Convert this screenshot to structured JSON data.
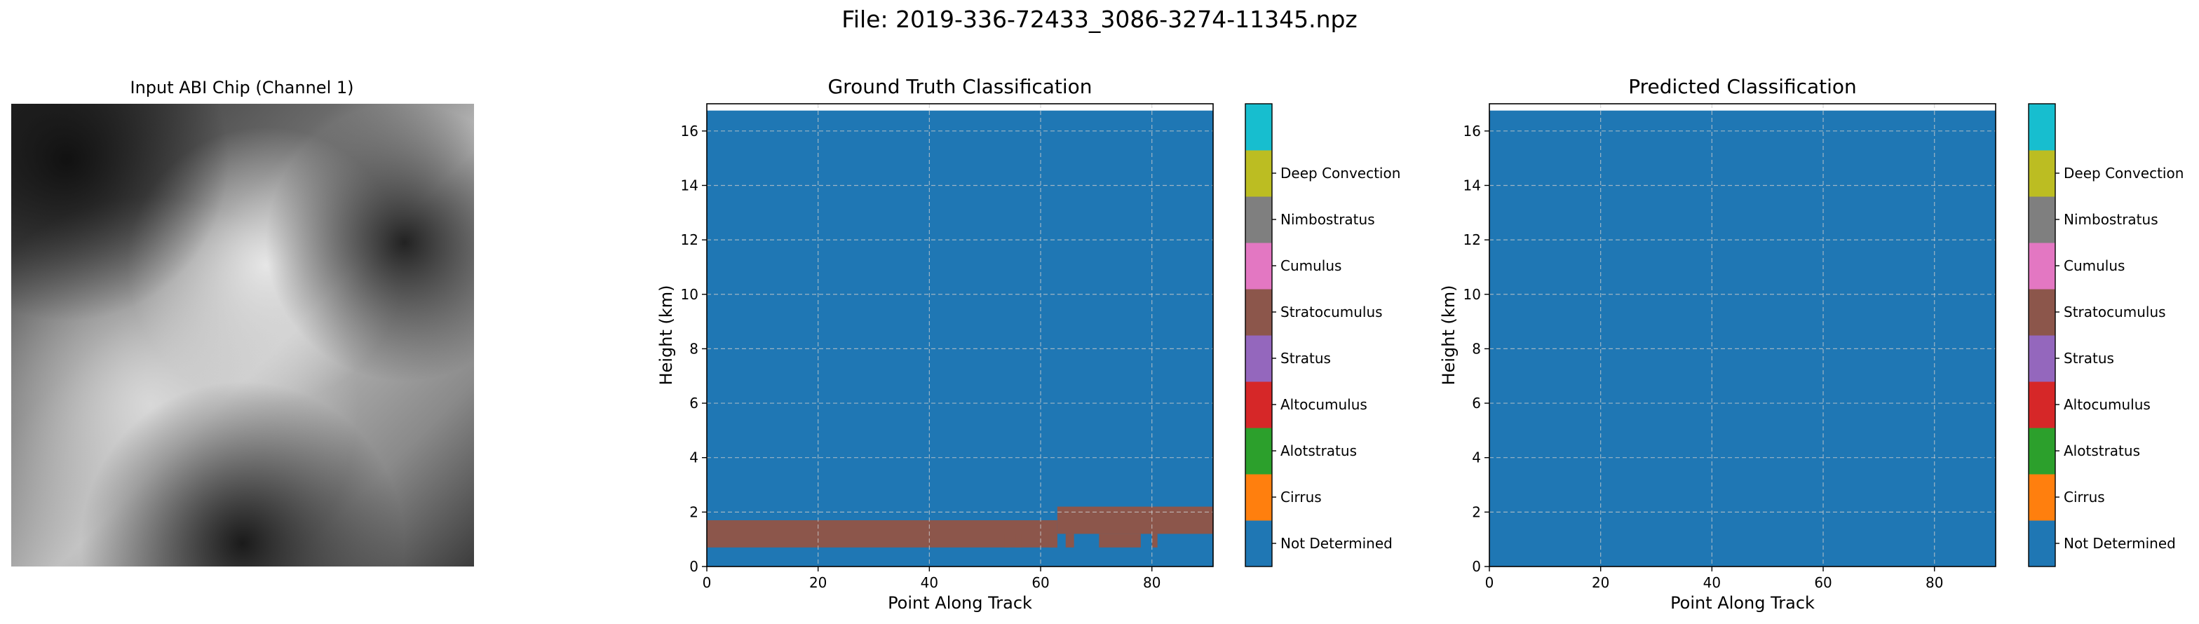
{
  "suptitle": "File: 2019-336-72433_3086-3274-11345.npz",
  "panels": {
    "input": {
      "title": "Input ABI Chip (Channel 1)"
    },
    "truth": {
      "title": "Ground Truth Classification"
    },
    "pred": {
      "title": "Predicted Classification"
    }
  },
  "colorbar": {
    "labels": [
      "Not Determined",
      "Cirrus",
      "Alotstratus",
      "Altocumulus",
      "Stratus",
      "Stratocumulus",
      "Cumulus",
      "Nimbostratus",
      "Deep Convection"
    ],
    "colors": [
      "#1f77b4",
      "#ff7f0e",
      "#2ca02c",
      "#d62728",
      "#9467bd",
      "#8c564b",
      "#e377c2",
      "#7f7f7f",
      "#bcbd22",
      "#17becf"
    ]
  },
  "chart_data": [
    {
      "type": "heatmap",
      "title": "Ground Truth Classification",
      "xlabel": "Point Along Track",
      "ylabel": "Height (km)",
      "xlim": [
        0,
        91
      ],
      "ylim": [
        0,
        17
      ],
      "xticks": [
        0,
        20,
        40,
        60,
        80
      ],
      "yticks": [
        0,
        2,
        4,
        6,
        8,
        10,
        12,
        14,
        16
      ],
      "grid": true,
      "background_class": "Not Determined",
      "regions": [
        {
          "class": "Stratocumulus",
          "x": [
            0,
            63
          ],
          "y": [
            0.7,
            1.7
          ]
        },
        {
          "class": "Stratocumulus",
          "x": [
            63,
            91
          ],
          "y": [
            1.2,
            2.2
          ]
        },
        {
          "class": "Stratocumulus",
          "x": [
            53.5,
            54.5
          ],
          "y": [
            0.7,
            1.2
          ]
        },
        {
          "class": "Stratocumulus",
          "x": [
            55.5,
            56.5
          ],
          "y": [
            0.7,
            1.2
          ]
        },
        {
          "class": "Stratocumulus",
          "x": [
            61.5,
            63
          ],
          "y": [
            0.7,
            1.2
          ]
        },
        {
          "class": "Stratocumulus",
          "x": [
            64.5,
            66
          ],
          "y": [
            0.7,
            1.2
          ]
        },
        {
          "class": "Stratocumulus",
          "x": [
            70.5,
            78
          ],
          "y": [
            0.7,
            1.2
          ]
        },
        {
          "class": "Stratocumulus",
          "x": [
            80,
            81
          ],
          "y": [
            0.7,
            1.2
          ]
        }
      ]
    },
    {
      "type": "heatmap",
      "title": "Predicted Classification",
      "xlabel": "Point Along Track",
      "ylabel": "Height (km)",
      "xlim": [
        0,
        91
      ],
      "ylim": [
        0,
        17
      ],
      "xticks": [
        0,
        20,
        40,
        60,
        80
      ],
      "yticks": [
        0,
        2,
        4,
        6,
        8,
        10,
        12,
        14,
        16
      ],
      "grid": true,
      "background_class": "Not Determined",
      "regions": []
    }
  ]
}
